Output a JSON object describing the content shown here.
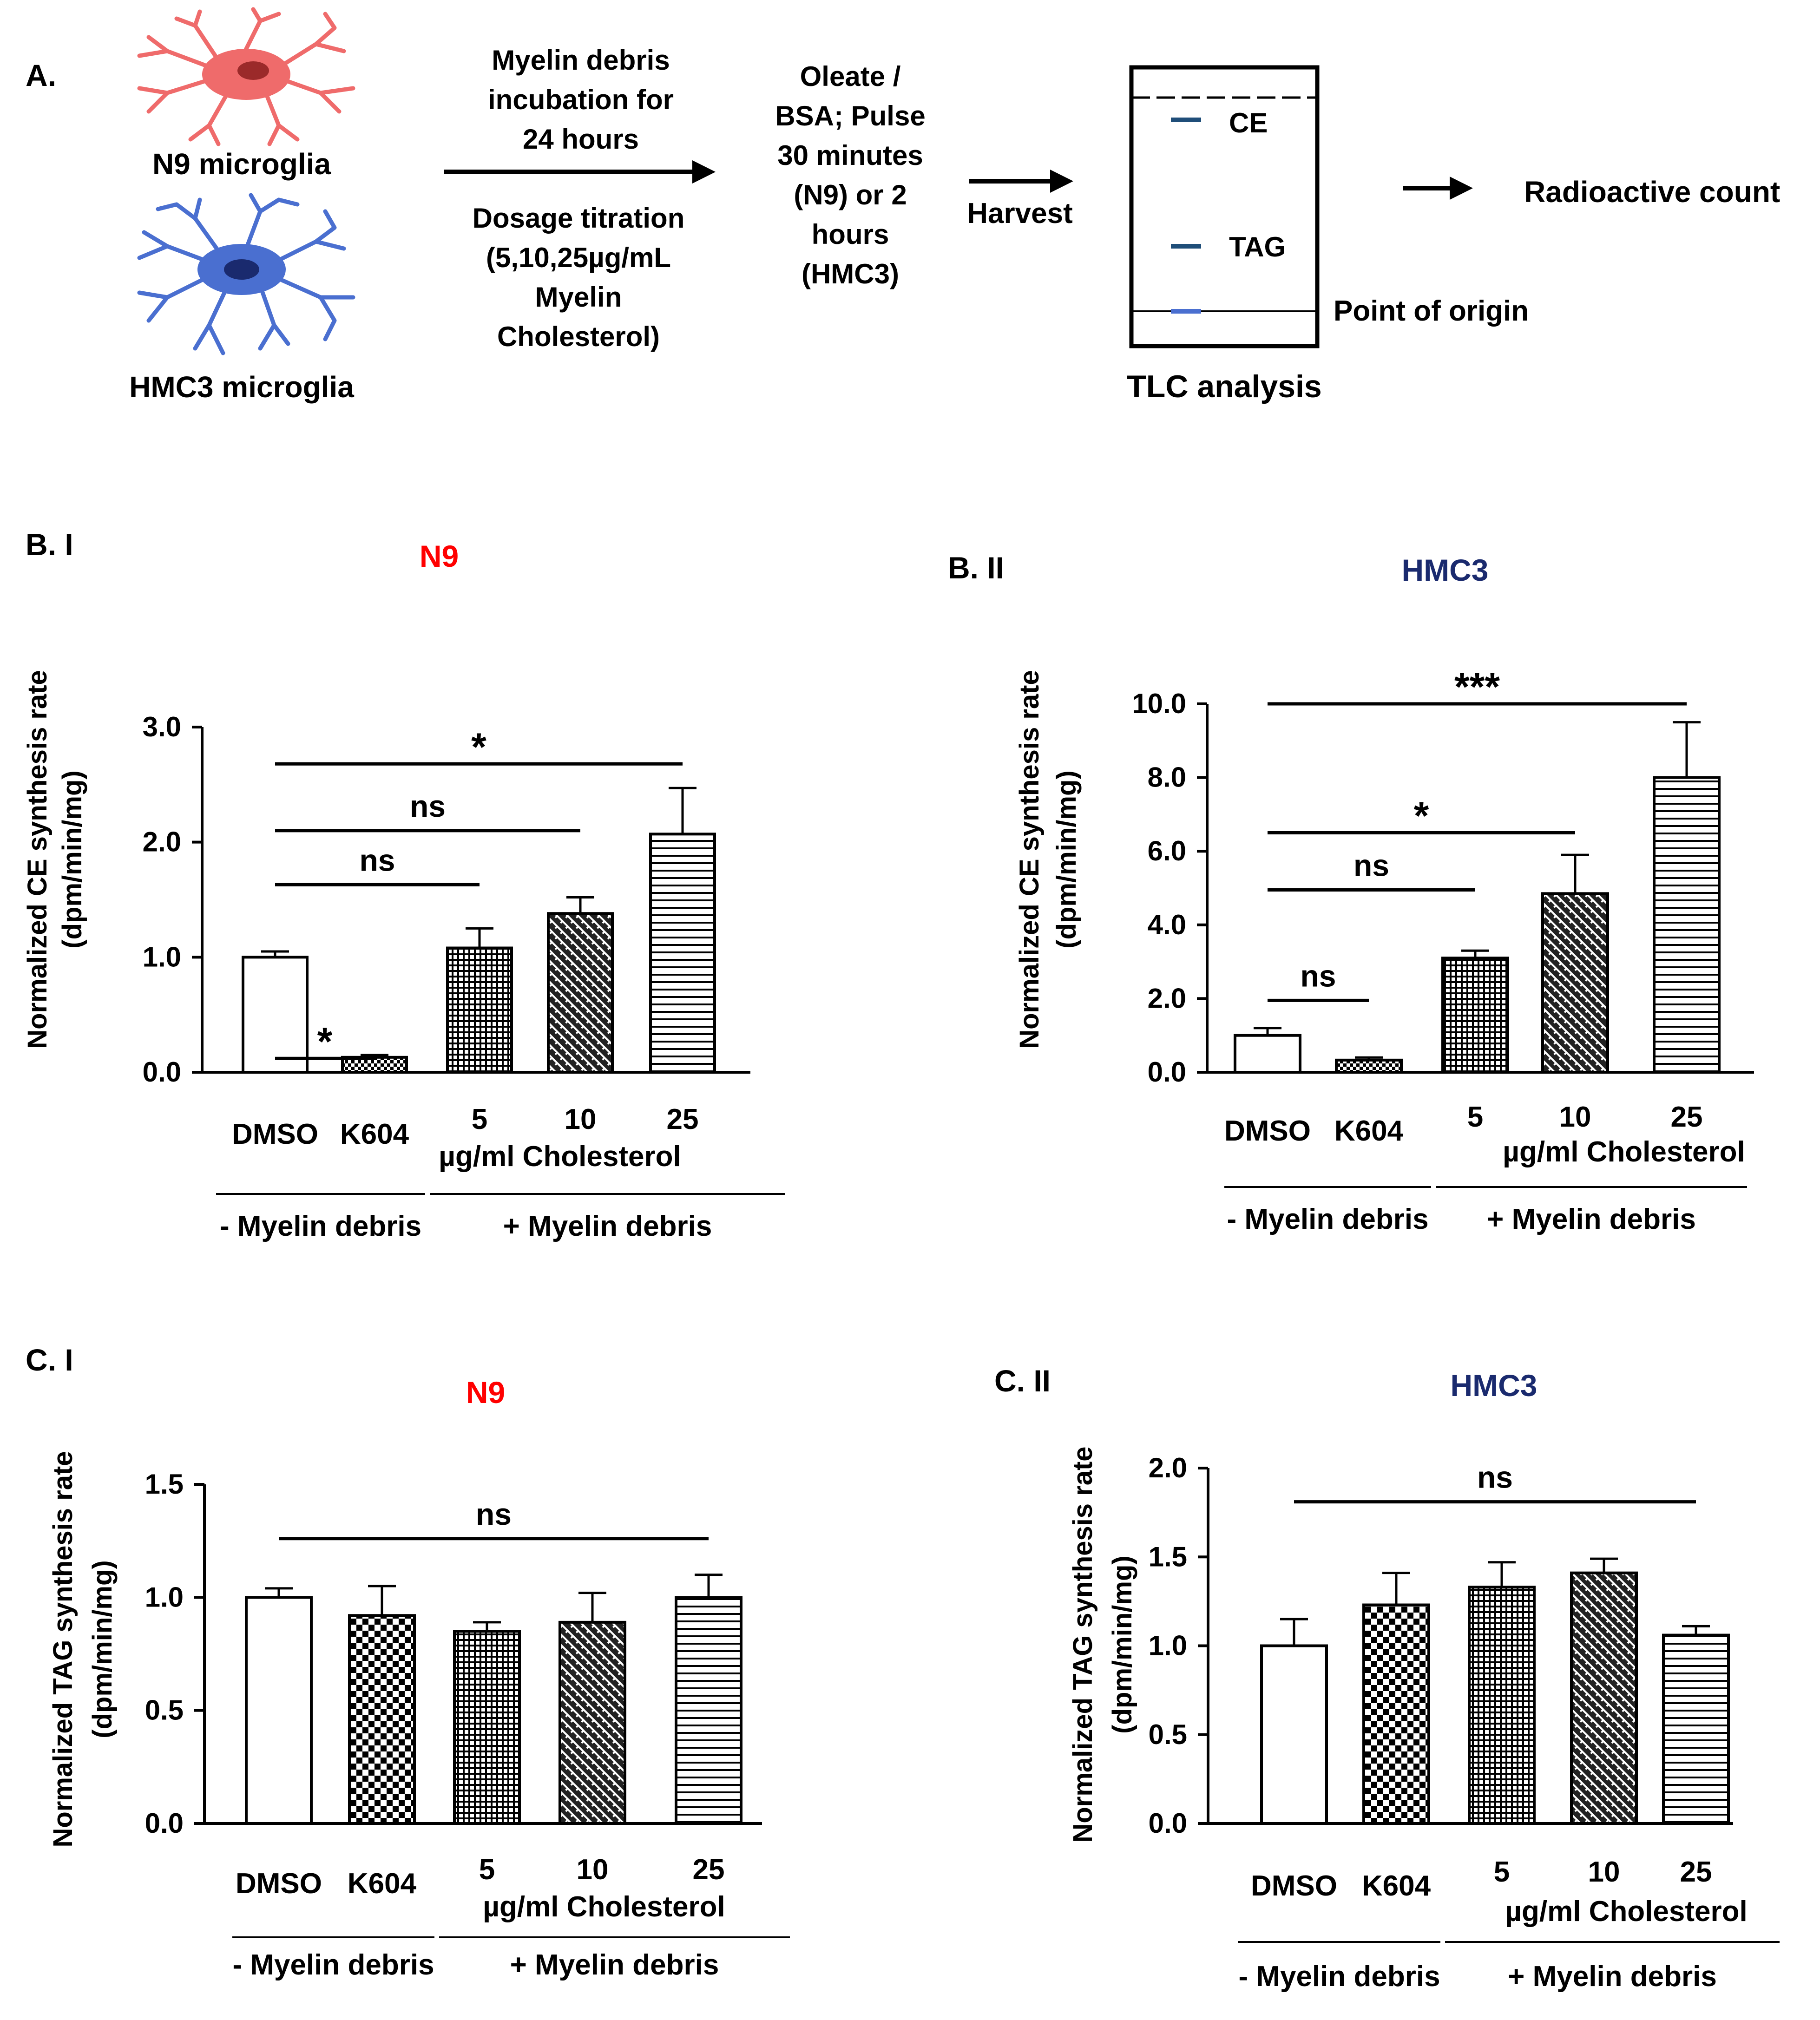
{
  "panel_a": {
    "label": "A.",
    "cell1_label": "N9 microglia",
    "cell2_label": "HMC3 microglia",
    "step1_above": [
      "Myelin debris",
      "incubation for",
      "24 hours"
    ],
    "step1_below": [
      "Dosage titration",
      "(5,10,25µg/mL",
      "Myelin",
      "Cholesterol)"
    ],
    "step2": [
      "Oleate /",
      "BSA; Pulse",
      "30 minutes",
      "(N9) or 2",
      "hours",
      "(HMC3)"
    ],
    "step3": "Harvest",
    "tlc_ce": "CE",
    "tlc_tag": "TAG",
    "tlc_origin": "Point of origin",
    "tlc_caption": "TLC analysis",
    "final": "Radioactive count",
    "colors": {
      "n9": "#ef6b6b",
      "hmc3": "#4a6fd0",
      "band": "#1f4e79"
    }
  },
  "chart_data": [
    {
      "type": "bar",
      "panel_label": "B. I",
      "title": "N9",
      "title_color": "#ff0000",
      "ylabel_line1": "Normalized CE synthesis rate",
      "ylabel_line2": "(dpm/min/mg)",
      "ylim": [
        0,
        3
      ],
      "yticks": [
        "0.0",
        "1.0",
        "2.0",
        "3.0"
      ],
      "ytick_values": [
        0,
        1,
        2,
        3
      ],
      "categories": [
        "DMSO",
        "K604",
        "5",
        "10",
        "25"
      ],
      "values": [
        1.0,
        0.13,
        1.08,
        1.38,
        2.07
      ],
      "errors": [
        0.05,
        0.02,
        0.17,
        0.14,
        0.4
      ],
      "patterns": [
        "none",
        "dots",
        "grid",
        "diag",
        "hlines"
      ],
      "unit_label": "µg/ml Cholesterol",
      "group_left": "- Myelin debris",
      "group_right": "+ Myelin debris",
      "comparisons": [
        {
          "from": 0,
          "to": 1,
          "label": "*",
          "value": 0.12
        },
        {
          "from": 0,
          "to": 2,
          "label": "ns",
          "value": 1.63
        },
        {
          "from": 0,
          "to": 3,
          "label": "ns",
          "value": 2.1
        },
        {
          "from": 0,
          "to": 4,
          "label": "*",
          "value": 2.68
        }
      ]
    },
    {
      "type": "bar",
      "panel_label": "B. II",
      "title": "HMC3",
      "title_color": "#1a2a6e",
      "ylabel_line1": "Normalized CE synthesis rate",
      "ylabel_line2": "(dpm/min/mg)",
      "ylim": [
        0,
        10
      ],
      "yticks": [
        "0.0",
        "2.0",
        "4.0",
        "6.0",
        "8.0",
        "10.0"
      ],
      "ytick_values": [
        0,
        2,
        4,
        6,
        8,
        10
      ],
      "categories": [
        "DMSO",
        "K604",
        "5",
        "10",
        "25"
      ],
      "values": [
        1.0,
        0.33,
        3.1,
        4.85,
        8.0
      ],
      "errors": [
        0.2,
        0.07,
        0.2,
        1.05,
        1.5
      ],
      "patterns": [
        "none",
        "dots",
        "grid",
        "diag",
        "hlines"
      ],
      "unit_label": "µg/ml Cholesterol",
      "group_left": "- Myelin debris",
      "group_right": "+ Myelin debris",
      "comparisons": [
        {
          "from": 0,
          "to": 1,
          "label": "ns",
          "value": 1.95
        },
        {
          "from": 0,
          "to": 2,
          "label": "ns",
          "value": 4.95
        },
        {
          "from": 0,
          "to": 3,
          "label": "*",
          "value": 6.5
        },
        {
          "from": 0,
          "to": 4,
          "label": "***",
          "value": 10.0
        }
      ]
    },
    {
      "type": "bar",
      "panel_label": "C. I",
      "title": "N9",
      "title_color": "#ff0000",
      "ylabel_line1": "Normalized TAG synthesis rate",
      "ylabel_line2": "(dpm/min/mg)",
      "ylim": [
        0,
        1.5
      ],
      "yticks": [
        "0.0",
        "0.5",
        "1.0",
        "1.5"
      ],
      "ytick_values": [
        0,
        0.5,
        1.0,
        1.5
      ],
      "categories": [
        "DMSO",
        "K604",
        "5",
        "10",
        "25"
      ],
      "values": [
        1.0,
        0.92,
        0.85,
        0.89,
        1.0
      ],
      "errors": [
        0.04,
        0.13,
        0.04,
        0.13,
        0.1
      ],
      "patterns": [
        "none",
        "check",
        "grid",
        "diag",
        "hlines"
      ],
      "unit_label": "µg/ml Cholesterol",
      "group_left": "- Myelin debris",
      "group_right": "+ Myelin debris",
      "comparisons": [
        {
          "from": 0,
          "to": 4,
          "label": "ns",
          "value": 1.26
        }
      ]
    },
    {
      "type": "bar",
      "panel_label": "C. II",
      "title": "HMC3",
      "title_color": "#1a2a6e",
      "ylabel_line1": "Normalized TAG synthesis rate",
      "ylabel_line2": "(dpm/min/mg)",
      "ylim": [
        0,
        2
      ],
      "yticks": [
        "0.0",
        "0.5",
        "1.0",
        "1.5",
        "2.0"
      ],
      "ytick_values": [
        0,
        0.5,
        1.0,
        1.5,
        2.0
      ],
      "categories": [
        "DMSO",
        "K604",
        "5",
        "10",
        "25"
      ],
      "values": [
        1.0,
        1.23,
        1.33,
        1.41,
        1.06
      ],
      "errors": [
        0.15,
        0.18,
        0.14,
        0.08,
        0.05
      ],
      "patterns": [
        "none",
        "check",
        "grid",
        "diag",
        "hlines"
      ],
      "unit_label": "µg/ml Cholesterol",
      "group_left": "- Myelin debris",
      "group_right": "+ Myelin debris",
      "comparisons": [
        {
          "from": 0,
          "to": 4,
          "label": "ns",
          "value": 1.81
        }
      ]
    }
  ]
}
